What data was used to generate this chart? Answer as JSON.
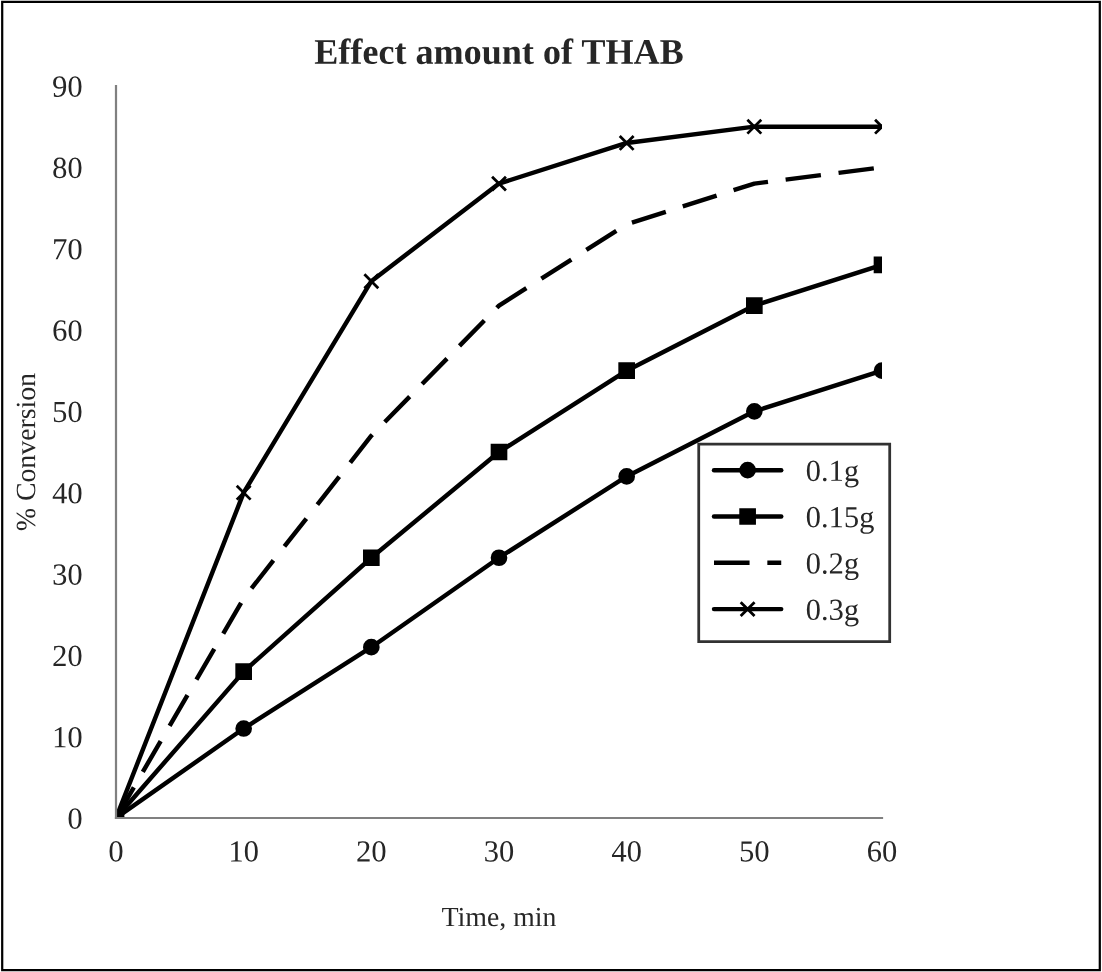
{
  "chart_data": {
    "type": "line",
    "title": "Effect amount of THAB",
    "xlabel": "Time, min",
    "ylabel": "% Conversion",
    "x": [
      0,
      10,
      20,
      30,
      40,
      50,
      60
    ],
    "series": [
      {
        "name": "0.1g",
        "color": "#000000",
        "marker": "circle",
        "line_style": "solid",
        "values": [
          0,
          11,
          21,
          32,
          42,
          50,
          55
        ]
      },
      {
        "name": "0.15g",
        "color": "#000000",
        "marker": "square",
        "line_style": "solid",
        "values": [
          0,
          18,
          32,
          45,
          55,
          63,
          68
        ]
      },
      {
        "name": "0.2g",
        "color": "#000000",
        "marker": "none",
        "line_style": "dashed",
        "values": [
          0,
          27,
          47,
          63,
          73,
          78,
          80
        ]
      },
      {
        "name": "0.3g",
        "color": "#000000",
        "marker": "cross",
        "line_style": "solid",
        "values": [
          0,
          40,
          66,
          78,
          83,
          85,
          85
        ]
      }
    ],
    "xlim": [
      0,
      60
    ],
    "xticks": [
      0,
      10,
      20,
      30,
      40,
      50,
      60
    ],
    "ylim": [
      0,
      90
    ],
    "yticks": [
      0,
      10,
      20,
      30,
      40,
      50,
      60,
      70,
      80,
      90
    ],
    "grid": false,
    "legend": "bottom right"
  }
}
